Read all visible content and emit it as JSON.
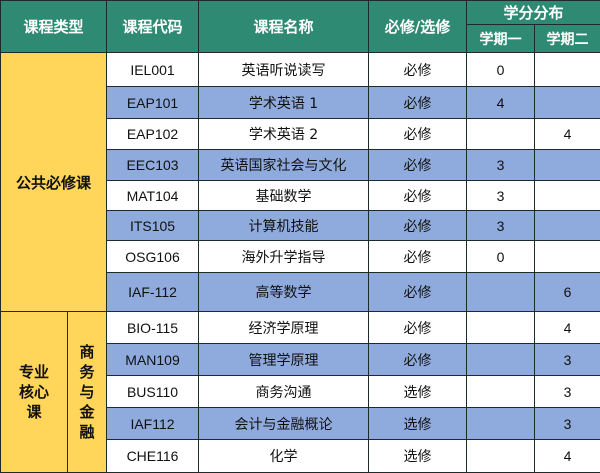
{
  "header": {
    "type": "课程类型",
    "code": "课程代码",
    "name": "课程名称",
    "required": "必修/选修",
    "credits": "学分分布",
    "term1": "学期一",
    "term2": "学期二"
  },
  "groups": {
    "public": "公共必修课",
    "core": "专业核心课",
    "core_sub": "商务与金融"
  },
  "rows": [
    {
      "code": "IEL001",
      "name": "英语听说读写",
      "type": "必修",
      "t1": "0",
      "t2": ""
    },
    {
      "code": "EAP101",
      "name": "学术英语 1",
      "type": "必修",
      "t1": "4",
      "t2": ""
    },
    {
      "code": "EAP102",
      "name": "学术英语 2",
      "type": "必修",
      "t1": "",
      "t2": "4"
    },
    {
      "code": "EEC103",
      "name": "英语国家社会与文化",
      "type": "必修",
      "t1": "3",
      "t2": ""
    },
    {
      "code": "MAT104",
      "name": "基础数学",
      "type": "必修",
      "t1": "3",
      "t2": ""
    },
    {
      "code": "ITS105",
      "name": "计算机技能",
      "type": "必修",
      "t1": "3",
      "t2": ""
    },
    {
      "code": "OSG106",
      "name": "海外升学指导",
      "type": "必修",
      "t1": "0",
      "t2": ""
    },
    {
      "code": "IAF-112",
      "name": "高等数学",
      "type": "必修",
      "t1": "",
      "t2": "6"
    },
    {
      "code": "BIO-115",
      "name": "经济学原理",
      "type": "必修",
      "t1": "",
      "t2": "4"
    },
    {
      "code": "MAN109",
      "name": "管理学原理",
      "type": "必修",
      "t1": "",
      "t2": "3"
    },
    {
      "code": "BUS110",
      "name": "商务沟通",
      "type": "选修",
      "t1": "",
      "t2": "3"
    },
    {
      "code": "IAF112",
      "name": "会计与金融概论",
      "type": "选修",
      "t1": "",
      "t2": "3"
    },
    {
      "code": "CHE116",
      "name": "化学",
      "type": "选修",
      "t1": "",
      "t2": "4"
    }
  ],
  "colors": {
    "header": "#2f8a73",
    "group": "#ffd55a",
    "stripe": "#8faadc",
    "border": "#1f2a2a"
  }
}
